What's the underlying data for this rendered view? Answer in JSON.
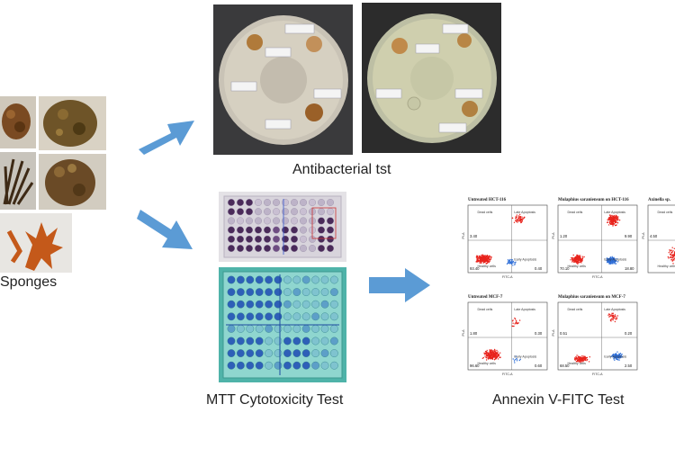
{
  "labels": {
    "sponges": "Sponges",
    "antibacterial": "Antibacterial tst",
    "mtt": "MTT Cytotoxicity Test",
    "annexin": "Annexin V-FITC Test"
  },
  "flow_panels": [
    {
      "title": "Untreated HCT-116",
      "title2": "",
      "tl": "3.40",
      "tr": "",
      "bl": "93.40",
      "br": "0.40"
    },
    {
      "title": "Mulaphius saraniensum",
      "title2": "on HCT-116",
      "tl": "1.20",
      "tr": "9.90",
      "bl": "70.10",
      "br": "18.80"
    },
    {
      "title": "Axinella sp.",
      "title2": "",
      "tl": "4.50",
      "tr": "",
      "bl": "",
      "br": ""
    },
    {
      "title": "Untreated MCF-7",
      "title2": "",
      "tl": "1.80",
      "tr": "0.30",
      "bl": "96.60",
      "br": "0.60"
    },
    {
      "title": "Mulaphius saraniensum",
      "title2": "on MCF-7",
      "tl": "0.51",
      "tr": "0.20",
      "bl": "68.50",
      "br": "2.50"
    }
  ],
  "flow_quadrants": {
    "dead": "Dead cells",
    "late": "Late Apoptosis",
    "healthy": "Healthy cells",
    "early": "Early Apoptosis",
    "xaxis": "FITC-A",
    "yaxis": "PI-A"
  },
  "colors": {
    "arrow": "#5b9bd5",
    "red_dots": "#e8231c",
    "blue_dots": "#2f6fd8"
  }
}
